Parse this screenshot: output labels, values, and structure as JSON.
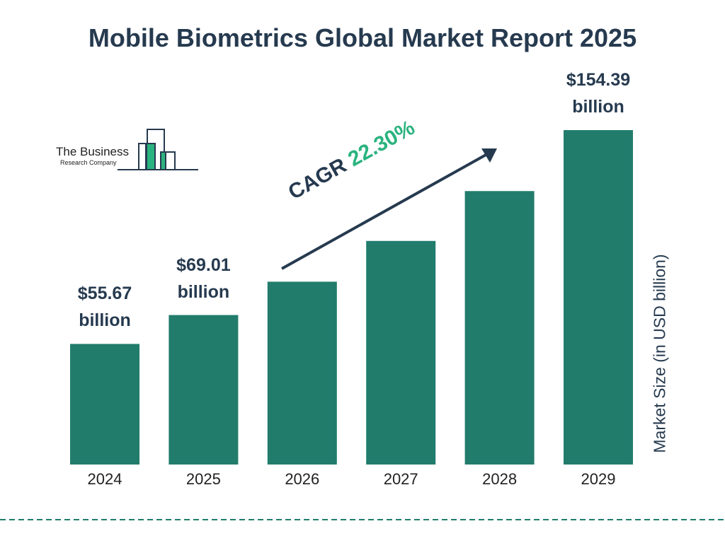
{
  "chart_data": {
    "type": "bar",
    "title": "Mobile Biometrics Global Market Report 2025",
    "categories": [
      "2024",
      "2025",
      "2026",
      "2027",
      "2028",
      "2029"
    ],
    "values": [
      55.67,
      69.01,
      84.4,
      103.22,
      126.24,
      154.39
    ],
    "value_labels": [
      "$55.67 billion",
      "$69.01 billion",
      null,
      null,
      null,
      "$154.39 billion"
    ],
    "color": "#217c6c",
    "ylabel": "Market Size (in USD billion)",
    "annotation": {
      "label": "CAGR",
      "value": "22.30%"
    }
  },
  "logo": {
    "name": "The Business",
    "subname": "Research Company"
  }
}
